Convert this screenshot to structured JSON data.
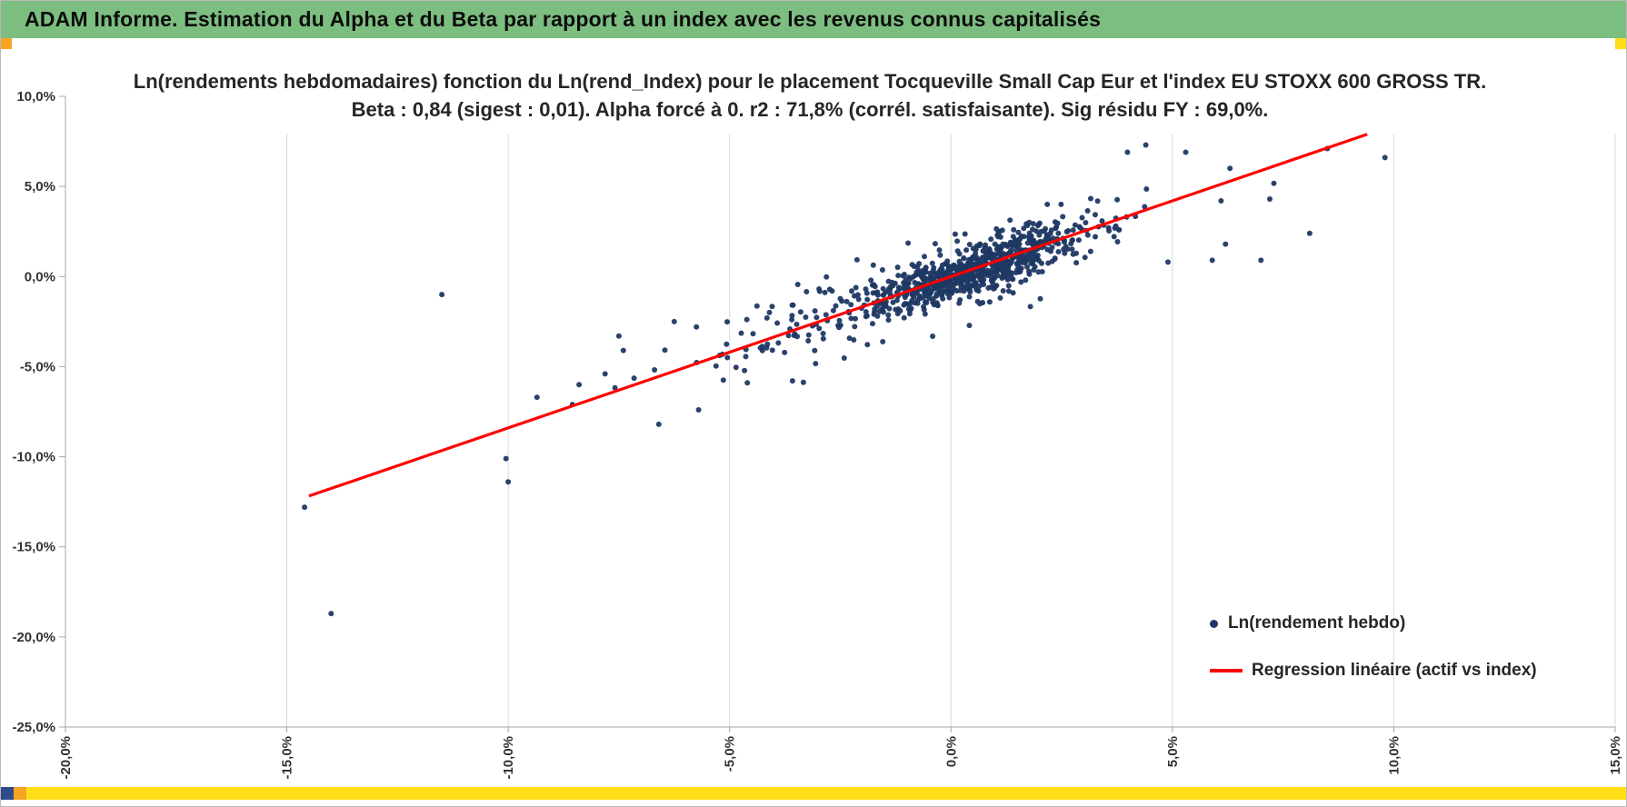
{
  "header": {
    "title": "ADAM Informe. Estimation du Alpha et du Beta par rapport à un index avec les revenus connus capitalisés",
    "bg_color": "#7CBE80"
  },
  "corners": {
    "left_color": "#F4A522",
    "right_color": "#FFDE17"
  },
  "footer_strip": {
    "colors": [
      "#2F4B8C",
      "#F4A522",
      "#FFDE17"
    ]
  },
  "chart_data": {
    "type": "scatter",
    "title_line1": "Ln(rendements hebdomadaires) fonction du Ln(rend_Index) pour le placement Tocqueville Small Cap Eur et l'index EU STOXX 600 GROSS TR.",
    "title_line2": "Beta : 0,84 (sigest : 0,01). Alpha forcé à 0. r2 : 71,8% (corrél. satisfaisante). Sig résidu FY : 69,0%.",
    "xlabel": "",
    "ylabel": "",
    "xlim": [
      -20,
      15
    ],
    "ylim": [
      -25,
      10
    ],
    "grid": "vertical-only",
    "x_ticks": [
      {
        "value": -20,
        "label": "-20,0%"
      },
      {
        "value": -15,
        "label": "-15,0%"
      },
      {
        "value": -10,
        "label": "-10,0%"
      },
      {
        "value": -5,
        "label": "-5,0%"
      },
      {
        "value": 0,
        "label": "0,0%"
      },
      {
        "value": 5,
        "label": "5,0%"
      },
      {
        "value": 10,
        "label": "10,0%"
      },
      {
        "value": 15,
        "label": "15,0%"
      }
    ],
    "y_ticks": [
      {
        "value": 10,
        "label": "10,0%"
      },
      {
        "value": 5,
        "label": "5,0%"
      },
      {
        "value": 0,
        "label": "0,0%"
      },
      {
        "value": -5,
        "label": "-5,0%"
      },
      {
        "value": -10,
        "label": "-10,0%"
      },
      {
        "value": -15,
        "label": "-15,0%"
      },
      {
        "value": -20,
        "label": "-20,0%"
      },
      {
        "value": -25,
        "label": "-25,0%"
      }
    ],
    "style": {
      "grid_color": "#D9D9D9",
      "axis_color": "#A6A6A6"
    },
    "series": [
      {
        "name": "Ln(rendement hebdo)",
        "color": "#1F3864",
        "marker": "dot"
      }
    ],
    "regression": {
      "name": "Regression linéaire (actif vs index)",
      "color": "#FF0000",
      "beta": 0.84,
      "alpha": 0,
      "x_start": -14.5,
      "x_end": 9.4,
      "stats": {
        "beta_label": "0,84",
        "sigest": "0,01",
        "alpha_note": "Alpha forcé à 0",
        "r2": "71,8%",
        "correlation_note": "corrél. satisfaisante",
        "sig_residu_fy": "69,0%"
      }
    },
    "outlier_points": [
      [
        -14.6,
        -12.8
      ],
      [
        -14.0,
        -18.7
      ],
      [
        -11.5,
        -1.0
      ],
      [
        -10.05,
        -10.1
      ],
      [
        -10.0,
        -11.4
      ],
      [
        -9.35,
        -6.7
      ],
      [
        -8.55,
        -7.1
      ],
      [
        -8.4,
        -6.0
      ],
      [
        -7.5,
        -3.3
      ],
      [
        -7.4,
        -4.1
      ],
      [
        -6.6,
        -8.2
      ],
      [
        -6.25,
        -2.5
      ],
      [
        -5.7,
        -7.4
      ],
      [
        -5.75,
        -2.8
      ],
      [
        -5.05,
        -4.5
      ],
      [
        -4.6,
        -5.9
      ],
      [
        8.5,
        7.1
      ],
      [
        9.8,
        6.6
      ],
      [
        8.1,
        2.4
      ],
      [
        6.2,
        1.8
      ],
      [
        6.3,
        6.0
      ],
      [
        5.3,
        6.9
      ],
      [
        4.4,
        7.3
      ],
      [
        7.2,
        4.3
      ],
      [
        6.1,
        4.2
      ],
      [
        5.9,
        0.9
      ],
      [
        7.0,
        0.9
      ],
      [
        4.9,
        0.8
      ]
    ],
    "cloud": {
      "seed": 7,
      "beta": 0.84,
      "components": [
        {
          "n": 620,
          "x_mean": 0.55,
          "x_sd": 1.05,
          "resid_sd": 0.65
        },
        {
          "n": 200,
          "x_mean": 0.2,
          "x_sd": 2.1,
          "resid_sd": 1.05
        },
        {
          "n": 70,
          "x_mean": -3.0,
          "x_sd": 1.6,
          "resid_sd": 1.35
        }
      ],
      "x_clip": [
        -9.6,
        7.9
      ],
      "y_clip": [
        -23.5,
        9.3
      ]
    },
    "legend": {
      "position": "lower-right",
      "items": [
        {
          "label": "Ln(rendement hebdo)",
          "marker": "dot",
          "color": "#1F3864"
        },
        {
          "label": "Regression linéaire (actif vs index)",
          "marker": "line",
          "color": "#FF0000"
        }
      ]
    }
  }
}
